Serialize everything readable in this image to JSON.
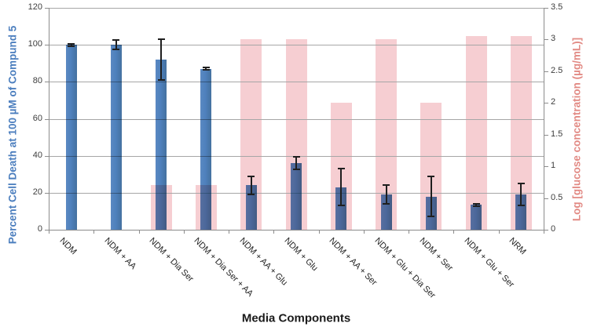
{
  "chart_data": {
    "type": "bar",
    "title": "",
    "xlabel": "Media Components",
    "categories": [
      "NDM",
      "NDM + AA",
      "NDM + Dia Ser",
      "NDM + Dia Ser + AA",
      "NDM + AA + Glu",
      "NDM + Glu",
      "NDM + AA + Ser",
      "NDM + Glu + Dia Ser",
      "NDM + Ser",
      "NDM + Glu + Ser",
      "NRM"
    ],
    "series": [
      {
        "name": "Percent Cell Death at 100 µM of Compund 5",
        "axis": "left",
        "color": "#4f81bd",
        "values": [
          100,
          100,
          92,
          87,
          24,
          36,
          23,
          19,
          18,
          13.5,
          19
        ],
        "error_bars": [
          0.7,
          2.5,
          11,
          0.7,
          5,
          3.5,
          10,
          5,
          11,
          0.7,
          6
        ]
      },
      {
        "name": "Log [glucose concentration (µg/mL)]",
        "axis": "right",
        "color": "#f6ced2",
        "values": [
          0,
          0,
          0.7,
          0.7,
          3,
          3,
          2,
          3,
          2,
          3.05,
          3.05
        ]
      }
    ],
    "left_axis": {
      "title": "Percent Cell Death at 100 µM of Compund 5",
      "min": 0,
      "max": 120,
      "step": 20,
      "ticks": [
        "0",
        "20",
        "40",
        "60",
        "80",
        "100",
        "120"
      ],
      "color": "#4b7ebe"
    },
    "right_axis": {
      "title": "Log [glucose concentration (µg/mL)]",
      "min": 0,
      "max": 3.5,
      "step": 0.5,
      "ticks": [
        "0",
        "0.5",
        "1",
        "1.5",
        "2",
        "2.5",
        "3",
        "3.5"
      ],
      "color": "#e28a84"
    },
    "grid": true,
    "legend": "none"
  }
}
